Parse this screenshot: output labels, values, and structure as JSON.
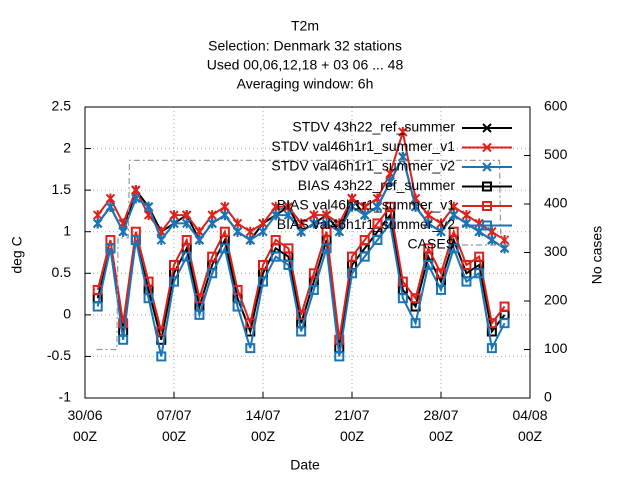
{
  "chart_data": {
    "type": "line",
    "title": "T2m",
    "subtitles": [
      "Selection: Denmark      32 stations",
      "Used  00,06,12,18  + 03 06 ... 48",
      "Averaging window:   6h"
    ],
    "x_label": "Date",
    "y_label": "deg C",
    "y2_label": "No cases",
    "xlim": [
      0,
      35
    ],
    "ylim": [
      -1,
      2.5
    ],
    "y2lim": [
      0,
      600
    ],
    "xticks": [
      {
        "value": 0,
        "label": "30/06\n00Z"
      },
      {
        "value": 7,
        "label": "07/07\n00Z"
      },
      {
        "value": 14,
        "label": "14/07\n00Z"
      },
      {
        "value": 21,
        "label": "21/07\n00Z"
      },
      {
        "value": 28,
        "label": "28/07\n00Z"
      },
      {
        "value": 35,
        "label": "04/08\n00Z"
      }
    ],
    "yticks": [
      -1,
      -0.5,
      0,
      0.5,
      1,
      1.5,
      2,
      2.5
    ],
    "y2ticks": [
      0,
      100,
      200,
      300,
      400,
      500,
      600
    ],
    "grid": true,
    "legend": "top-right",
    "x": [
      1,
      2,
      3,
      4,
      5,
      6,
      7,
      8,
      9,
      10,
      11,
      12,
      13,
      14,
      15,
      16,
      17,
      18,
      19,
      20,
      21,
      22,
      23,
      24,
      25,
      26,
      27,
      28,
      29,
      30,
      31,
      32,
      33
    ],
    "series": [
      {
        "name": "STDV 43h22_ref_summer",
        "color": "#000000",
        "marker": "cross",
        "values": [
          1.1,
          1.3,
          1.0,
          1.5,
          1.3,
          1.0,
          1.1,
          1.2,
          0.9,
          1.1,
          1.2,
          1.0,
          0.9,
          1.1,
          1.2,
          1.3,
          1.0,
          1.1,
          1.2,
          1.0,
          1.4,
          1.2,
          1.3,
          1.6,
          1.9,
          1.3,
          1.1,
          1.0,
          1.2,
          1.1,
          1.0,
          0.9,
          0.8
        ]
      },
      {
        "name": "STDV val46h1r1_summer_v1",
        "color": "#e0201a",
        "marker": "cross",
        "values": [
          1.2,
          1.4,
          1.1,
          1.5,
          1.2,
          1.0,
          1.2,
          1.2,
          1.0,
          1.2,
          1.3,
          1.1,
          1.0,
          1.1,
          1.3,
          1.3,
          1.1,
          1.2,
          1.2,
          1.1,
          1.4,
          1.3,
          1.4,
          1.7,
          2.2,
          1.4,
          1.2,
          1.1,
          1.3,
          1.2,
          1.1,
          1.0,
          0.9
        ]
      },
      {
        "name": "STDV val46h1r1_summer_v2",
        "color": "#1a75b8",
        "marker": "cross",
        "values": [
          1.1,
          1.3,
          1.0,
          1.4,
          1.3,
          0.9,
          1.1,
          1.1,
          0.9,
          1.1,
          1.2,
          1.0,
          0.9,
          1.0,
          1.2,
          1.2,
          1.0,
          1.1,
          1.1,
          1.0,
          1.3,
          1.2,
          1.3,
          1.6,
          1.9,
          1.3,
          1.1,
          1.0,
          1.2,
          1.1,
          1.0,
          0.9,
          0.8
        ]
      },
      {
        "name": "BIAS 43h22_ref_summer",
        "color": "#000000",
        "marker": "square",
        "values": [
          0.2,
          0.8,
          -0.2,
          0.9,
          0.3,
          -0.3,
          0.5,
          0.8,
          0.1,
          0.6,
          0.9,
          0.2,
          -0.2,
          0.5,
          0.8,
          0.7,
          -0.1,
          0.4,
          0.9,
          -0.4,
          0.6,
          0.8,
          1.0,
          1.2,
          0.3,
          0.1,
          0.7,
          0.4,
          0.9,
          0.5,
          0.6,
          -0.2,
          0.0
        ]
      },
      {
        "name": "BIAS val46h1r1_summer_v1",
        "color": "#e0201a",
        "marker": "square",
        "values": [
          0.3,
          0.9,
          -0.1,
          1.0,
          0.4,
          -0.2,
          0.6,
          0.9,
          0.2,
          0.7,
          1.0,
          0.3,
          -0.1,
          0.6,
          0.9,
          0.8,
          0.0,
          0.5,
          1.0,
          -0.3,
          0.7,
          0.9,
          1.1,
          1.3,
          0.4,
          0.2,
          0.8,
          0.5,
          1.0,
          0.6,
          0.7,
          -0.1,
          0.1
        ]
      },
      {
        "name": "BIAS val46h1r1_summer_v2",
        "color": "#1a75b8",
        "marker": "square",
        "values": [
          0.1,
          0.8,
          -0.3,
          0.9,
          0.2,
          -0.5,
          0.4,
          0.7,
          0.0,
          0.5,
          0.8,
          0.1,
          -0.4,
          0.4,
          0.7,
          0.6,
          -0.2,
          0.3,
          0.8,
          -0.5,
          0.5,
          0.7,
          0.9,
          1.1,
          0.2,
          -0.1,
          0.6,
          0.3,
          0.8,
          0.4,
          0.5,
          -0.4,
          -0.1
        ]
      },
      {
        "name": "CASES",
        "color": "#999999",
        "marker": "none",
        "dash": true,
        "axis": "y2",
        "x": [
          0.9,
          2.5,
          2.6,
          3.4,
          3.5,
          32.6,
          32.7,
          33.3
        ],
        "values": [
          100,
          100,
          330,
          330,
          490,
          490,
          330,
          330
        ]
      }
    ]
  }
}
